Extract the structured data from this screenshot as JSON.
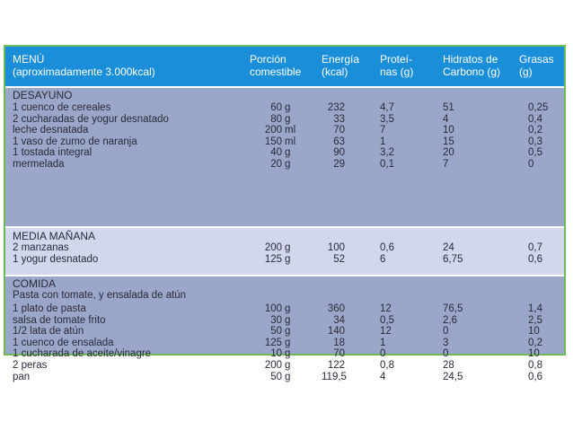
{
  "header": {
    "menu": "MENÚ\n(aproximadamente 3.000kcal)",
    "porcion": "Porción\ncomestible",
    "energia": "Energía\n(kcal)",
    "proteinas": "Proteí-\nnas (g)",
    "hidratos": "Hidratos de\nCarbono (g)",
    "grasas": "Grasas\n(g)"
  },
  "sections": [
    {
      "title": "DESAYUNO",
      "rows": [
        {
          "item": "1 cuenco de cereales",
          "qty": "60",
          "unit": "g",
          "kcal": "232",
          "prot": "4,7",
          "hc": "51",
          "gras": "0,25"
        },
        {
          "item": "2 cucharadas de yogur desnatado",
          "qty": "80",
          "unit": "g",
          "kcal": "33",
          "prot": "3,5",
          "hc": "4",
          "gras": "0,4"
        },
        {
          "item": "leche desnatada",
          "qty": "200",
          "unit": "ml",
          "kcal": "70",
          "prot": "7",
          "hc": "10",
          "gras": "0,2"
        },
        {
          "item": "1 vaso de zumo de naranja",
          "qty": "150",
          "unit": "ml",
          "kcal": "63",
          "prot": "1",
          "hc": "15",
          "gras": "0,3"
        },
        {
          "item": "1 tostada integral",
          "qty": "40",
          "unit": "g",
          "kcal": "90",
          "prot": "3,2",
          "hc": "20",
          "gras": "0,5"
        },
        {
          "item": "mermelada",
          "qty": "20",
          "unit": "g",
          "kcal": "29",
          "prot": "0,1",
          "hc": "7",
          "gras": "0"
        }
      ]
    },
    {
      "title": "MEDIA MAÑANA",
      "rows": [
        {
          "item": "2 manzanas",
          "qty": "200",
          "unit": "g",
          "kcal": "100",
          "prot": "0,6",
          "hc": "24",
          "gras": "0,7"
        },
        {
          "item": "1 yogur desnatado",
          "qty": "125",
          "unit": "g",
          "kcal": "52",
          "prot": "6",
          "hc": "6,75",
          "gras": "0,6"
        }
      ]
    },
    {
      "title": "COMIDA",
      "subtitle": "Pasta con tomate, y ensalada de atún",
      "rows": [
        {
          "item": "1 plato de pasta",
          "qty": "100",
          "unit": "g",
          "kcal": "360",
          "prot": "12",
          "hc": "76,5",
          "gras": "1,4"
        },
        {
          "item": "salsa de tomate frito",
          "qty": "30",
          "unit": "g",
          "kcal": "34",
          "prot": "0,5",
          "hc": "2,6",
          "gras": "2,5"
        },
        {
          "item": "1/2 lata de atún",
          "qty": "50",
          "unit": "g",
          "kcal": "140",
          "prot": "12",
          "hc": "0",
          "gras": "10"
        },
        {
          "item": "1 cuenco de ensalada",
          "qty": "125",
          "unit": "g",
          "kcal": "18",
          "prot": "1",
          "hc": "3",
          "gras": "0,2"
        },
        {
          "item": "1 cucharada de aceite/vinagre",
          "qty": "10",
          "unit": "g",
          "kcal": "70",
          "prot": "0",
          "hc": "0",
          "gras": "10"
        },
        {
          "item": "2 peras",
          "qty": "200",
          "unit": "g",
          "kcal": "122",
          "prot": "0,8",
          "hc": "28",
          "gras": "0,8"
        },
        {
          "item": "pan",
          "qty": "50",
          "unit": "g",
          "kcal": "119,5",
          "prot": "4",
          "hc": "24,5",
          "gras": "0,6"
        }
      ]
    }
  ],
  "colors": {
    "header_bg": "#1a8ed8",
    "section_dark": "#9aa7c9",
    "section_light": "#d2d8ec",
    "border": "#6cb85a"
  }
}
